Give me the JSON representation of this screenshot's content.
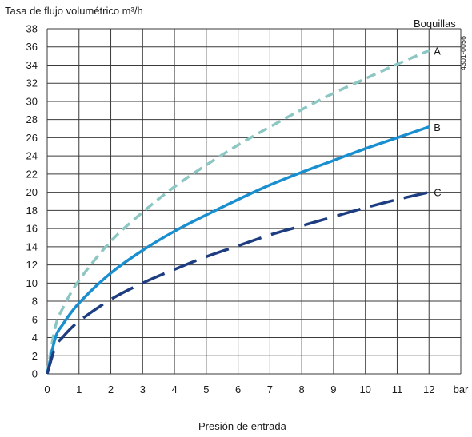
{
  "chart_data": {
    "type": "line",
    "ylabel": "Tasa de flujo volumétrico m³/h",
    "xlabel": "Presión de entrada",
    "x_unit": "bar",
    "legend_title": "Boquillas",
    "figure_code": "4301-0056",
    "xlim": [
      0,
      13
    ],
    "ylim": [
      0,
      38
    ],
    "x_ticks": [
      "0",
      "1",
      "2",
      "3",
      "4",
      "5",
      "6",
      "7",
      "8",
      "9",
      "10",
      "11",
      "12"
    ],
    "y_ticks": [
      "0",
      "2",
      "4",
      "6",
      "8",
      "10",
      "12",
      "14",
      "16",
      "18",
      "20",
      "22",
      "24",
      "26",
      "28",
      "30",
      "32",
      "34",
      "36",
      "38"
    ],
    "grid": true,
    "series": [
      {
        "name": "A",
        "color": "#8cc7c3",
        "dash": "dashed",
        "x": [
          0,
          0.25,
          0.5,
          1,
          2,
          3,
          4,
          5,
          6,
          7,
          8,
          9,
          10,
          11,
          12
        ],
        "y": [
          0,
          5.1,
          7.3,
          10.3,
          14.6,
          17.8,
          20.6,
          23.0,
          25.2,
          27.2,
          29.1,
          30.9,
          32.5,
          34.1,
          35.6
        ]
      },
      {
        "name": "B",
        "color": "#1a8fd0",
        "dash": "solid",
        "x": [
          0,
          0.25,
          0.5,
          1,
          2,
          3,
          4,
          5,
          6,
          7,
          8,
          9,
          10,
          11,
          12
        ],
        "y": [
          0,
          3.9,
          5.5,
          7.8,
          11.1,
          13.6,
          15.7,
          17.5,
          19.2,
          20.8,
          22.2,
          23.5,
          24.8,
          26.0,
          27.2
        ]
      },
      {
        "name": "C",
        "color": "#1e3d80",
        "dash": "long-dash",
        "x": [
          0,
          0.25,
          0.5,
          1,
          2,
          3,
          4,
          5,
          6,
          7,
          8,
          9,
          10,
          11,
          12
        ],
        "y": [
          0,
          2.9,
          4.1,
          5.8,
          8.2,
          10.0,
          11.5,
          12.9,
          14.1,
          15.3,
          16.3,
          17.3,
          18.3,
          19.2,
          20.0
        ]
      }
    ]
  }
}
